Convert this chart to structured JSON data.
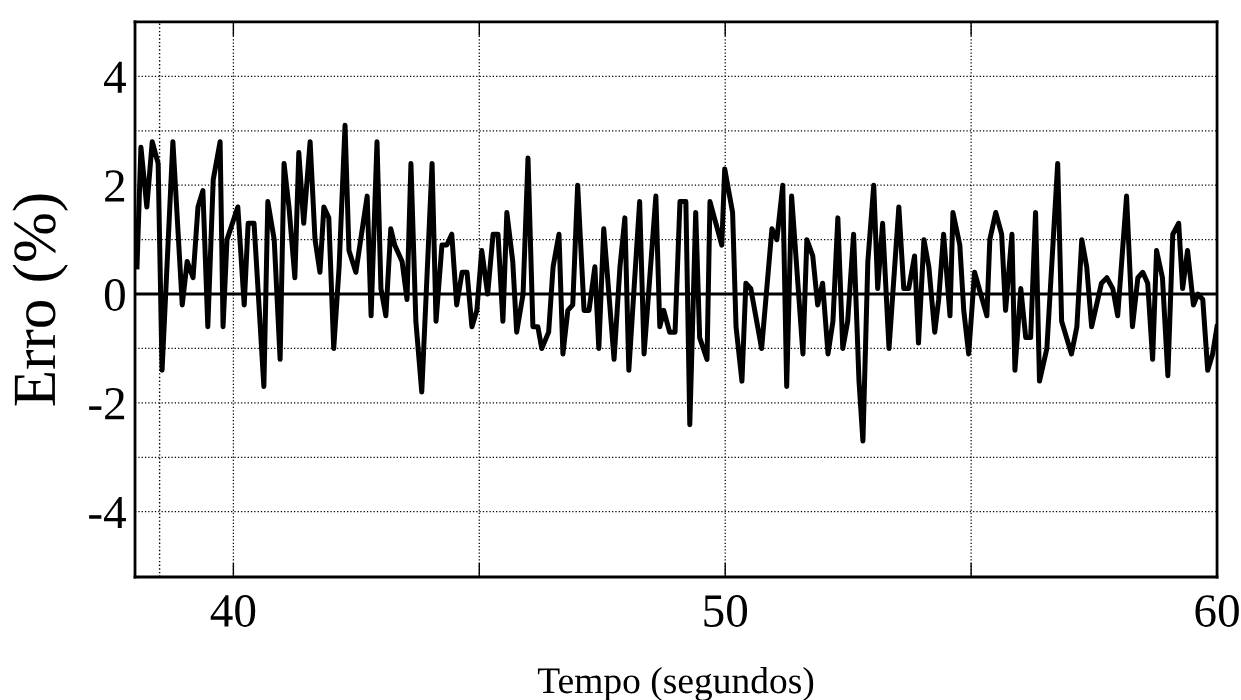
{
  "chart_data": {
    "type": "line",
    "xlabel": "Tempo (segundos)",
    "ylabel": "Erro (%)",
    "xlim": [
      38,
      60
    ],
    "ylim": [
      -5.2,
      5
    ],
    "xticks": [
      40,
      {
        "value": 45,
        "label": null
      },
      50,
      {
        "value": 55,
        "label": null
      },
      60
    ],
    "yticks": [
      -4,
      {
        "value": -3,
        "label": null
      },
      -2,
      {
        "value": -1,
        "label": null
      },
      0,
      {
        "value": 1,
        "label": null
      },
      2,
      {
        "value": 3,
        "label": null
      },
      4
    ],
    "grid": true,
    "line_style": "solid",
    "marker": "none",
    "ref_lines": [
      {
        "axis": "y",
        "value": 0,
        "color": "#000000",
        "line_style": "solid"
      },
      {
        "axis": "x",
        "value": 38.5,
        "color": "#000000",
        "line_style": "dotted"
      }
    ],
    "series": [
      {
        "color": "#000000",
        "x": [
          38.04,
          38.12,
          38.24,
          38.35,
          38.47,
          38.55,
          38.77,
          38.96,
          39.06,
          39.18,
          39.28,
          39.38,
          39.48,
          39.59,
          39.73,
          39.79,
          39.87,
          40.09,
          40.22,
          40.3,
          40.42,
          40.62,
          40.7,
          40.83,
          40.95,
          41.03,
          41.13,
          41.25,
          41.33,
          41.43,
          41.56,
          41.66,
          41.76,
          41.84,
          41.94,
          42.04,
          42.15,
          42.27,
          42.35,
          42.49,
          42.72,
          42.8,
          42.92,
          43.0,
          43.1,
          43.2,
          43.28,
          43.43,
          43.53,
          43.61,
          43.71,
          43.83,
          44.04,
          44.12,
          44.24,
          44.34,
          44.44,
          44.54,
          44.65,
          44.75,
          44.85,
          44.95,
          45.05,
          45.17,
          45.28,
          45.38,
          45.48,
          45.56,
          45.68,
          45.76,
          45.89,
          45.99,
          46.09,
          46.19,
          46.27,
          46.41,
          46.5,
          46.62,
          46.7,
          46.8,
          46.9,
          47.0,
          47.13,
          47.23,
          47.35,
          47.43,
          47.53,
          47.74,
          47.86,
          47.96,
          48.04,
          48.26,
          48.35,
          48.59,
          48.67,
          48.75,
          48.87,
          48.98,
          49.08,
          49.2,
          49.28,
          49.4,
          49.48,
          49.63,
          49.69,
          49.81,
          49.93,
          49.99,
          50.15,
          50.22,
          50.34,
          50.42,
          50.52,
          50.74,
          50.95,
          51.05,
          51.17,
          51.25,
          51.35,
          51.58,
          51.66,
          51.78,
          51.88,
          51.98,
          52.09,
          52.19,
          52.29,
          52.39,
          52.49,
          52.61,
          52.72,
          52.8,
          52.9,
          53.02,
          53.1,
          53.2,
          53.33,
          53.53,
          53.63,
          53.73,
          53.85,
          53.93,
          54.04,
          54.14,
          54.26,
          54.34,
          54.44,
          54.57,
          54.63,
          54.77,
          54.85,
          54.95,
          55.07,
          55.32,
          55.38,
          55.5,
          55.62,
          55.7,
          55.83,
          55.89,
          56.01,
          56.11,
          56.21,
          56.31,
          56.39,
          56.54,
          56.76,
          56.84,
          57.04,
          57.15,
          57.25,
          57.35,
          57.45,
          57.65,
          57.76,
          57.88,
          57.98,
          58.16,
          58.28,
          58.39,
          58.49,
          58.59,
          58.69,
          58.77,
          58.89,
          59.0,
          59.1,
          59.22,
          59.3,
          59.4,
          59.52,
          59.61,
          59.71,
          59.81,
          59.91,
          60.0
        ],
        "values": [
          0.5,
          2.7,
          1.6,
          2.8,
          2.4,
          -1.4,
          2.8,
          -0.2,
          0.6,
          0.3,
          1.6,
          1.9,
          -0.6,
          2.1,
          2.8,
          -0.6,
          1.0,
          1.6,
          -0.2,
          1.3,
          1.3,
          -1.7,
          1.7,
          1.0,
          -1.2,
          2.4,
          1.6,
          0.3,
          2.6,
          1.3,
          2.8,
          1.0,
          0.4,
          1.6,
          1.4,
          -1.0,
          0.5,
          3.1,
          0.8,
          0.4,
          1.8,
          -0.4,
          2.8,
          0.1,
          -0.4,
          1.2,
          0.9,
          0.6,
          -0.1,
          2.4,
          -0.5,
          -1.8,
          2.4,
          -0.5,
          0.9,
          0.9,
          1.1,
          -0.2,
          0.4,
          0.4,
          -0.6,
          -0.3,
          0.8,
          0.0,
          1.1,
          1.1,
          -0.5,
          1.5,
          0.6,
          -0.7,
          0.0,
          2.5,
          -0.6,
          -0.6,
          -1.0,
          -0.7,
          0.5,
          1.1,
          -1.1,
          -0.3,
          -0.2,
          2.0,
          -0.3,
          -0.3,
          0.5,
          -1.0,
          1.2,
          -1.2,
          0.5,
          1.4,
          -1.4,
          1.7,
          -1.1,
          1.8,
          -0.6,
          -0.3,
          -0.7,
          -0.7,
          1.7,
          1.7,
          -2.4,
          1.5,
          -0.8,
          -1.2,
          1.7,
          1.3,
          0.9,
          2.3,
          1.5,
          -0.6,
          -1.6,
          0.2,
          0.1,
          -1.0,
          1.2,
          1.0,
          2.0,
          -1.7,
          1.8,
          -1.1,
          1.0,
          0.7,
          -0.2,
          0.2,
          -1.1,
          -0.5,
          1.4,
          -1.0,
          -0.5,
          1.1,
          -1.6,
          -2.7,
          0.6,
          2.0,
          0.1,
          1.3,
          -1.0,
          1.6,
          0.1,
          0.1,
          0.7,
          -0.9,
          1.0,
          0.5,
          -0.7,
          -0.1,
          1.1,
          -0.4,
          1.5,
          0.9,
          -0.3,
          -1.1,
          0.4,
          -0.4,
          1.0,
          1.5,
          1.1,
          -0.3,
          1.1,
          -1.4,
          0.1,
          -0.8,
          -0.8,
          1.5,
          -1.6,
          -1.0,
          2.4,
          -0.5,
          -1.1,
          -0.6,
          1.0,
          0.5,
          -0.6,
          0.2,
          0.3,
          0.1,
          -0.4,
          1.8,
          -0.6,
          0.3,
          0.4,
          0.2,
          -1.2,
          0.8,
          0.3,
          -1.5,
          1.1,
          1.3,
          0.1,
          0.8,
          -0.2,
          0.0,
          -0.1,
          -1.4,
          -1.1,
          -0.6
        ]
      }
    ]
  }
}
